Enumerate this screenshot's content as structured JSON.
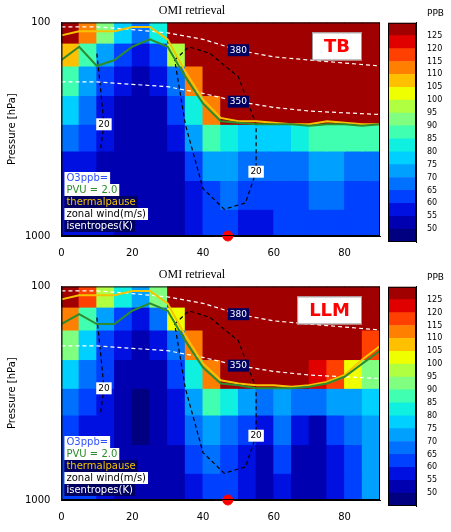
{
  "chart_data": [
    {
      "type": "heatmap",
      "title": "OMI retrieval",
      "panel_label": {
        "text": "TB",
        "color": "#ff0000"
      },
      "ylabel": "Pressure [hPa]",
      "xlim": [
        0,
        90
      ],
      "xticks": [
        0,
        20,
        40,
        60,
        80
      ],
      "ylim": [
        1000,
        100
      ],
      "yticks": [
        100,
        1000
      ],
      "log": "y",
      "grid": false,
      "cells": {
        "x_edges": [
          0,
          5,
          10,
          15,
          20,
          25,
          30,
          35,
          40,
          45,
          50,
          55,
          60,
          65,
          70,
          75,
          80,
          85,
          90
        ],
        "pressure_edges": [
          1000,
          750,
          550,
          400,
          300,
          220,
          160,
          125,
          100
        ],
        "values": [
          [
            55,
            55,
            55,
            52,
            52,
            50,
            50,
            55,
            60,
            60,
            58,
            58,
            60,
            60,
            62,
            62,
            62,
            62
          ],
          [
            55,
            55,
            52,
            52,
            50,
            50,
            50,
            58,
            62,
            65,
            60,
            60,
            62,
            62,
            65,
            65,
            62,
            62
          ],
          [
            58,
            55,
            52,
            50,
            50,
            50,
            52,
            62,
            70,
            72,
            65,
            65,
            68,
            68,
            70,
            72,
            68,
            68
          ],
          [
            65,
            60,
            55,
            50,
            50,
            50,
            55,
            70,
            85,
            80,
            75,
            75,
            78,
            80,
            85,
            88,
            85,
            85
          ],
          [
            75,
            65,
            58,
            52,
            50,
            52,
            60,
            80,
            110,
            128,
            128,
            128,
            128,
            128,
            128,
            128,
            128,
            128
          ],
          [
            85,
            70,
            60,
            55,
            52,
            55,
            65,
            110,
            128,
            128,
            128,
            128,
            128,
            128,
            128,
            128,
            128,
            128
          ],
          [
            105,
            85,
            70,
            60,
            55,
            60,
            95,
            128,
            128,
            128,
            128,
            128,
            128,
            128,
            128,
            128,
            128,
            128
          ],
          [
            128,
            110,
            90,
            75,
            65,
            80,
            128,
            128,
            128,
            128,
            128,
            128,
            128,
            128,
            128,
            128,
            128,
            128
          ]
        ]
      },
      "colorbar": {
        "label": "PPB",
        "range": [
          45,
          130
        ],
        "levels": [
          45,
          50,
          55,
          60,
          65,
          70,
          75,
          80,
          85,
          90,
          95,
          100,
          105,
          110,
          115,
          120,
          125,
          130
        ],
        "colors": [
          "#000080",
          "#0000b0",
          "#0010e0",
          "#0040ff",
          "#0070ff",
          "#00a0ff",
          "#00d0ff",
          "#10f0e0",
          "#40ffb0",
          "#80ff80",
          "#b0ff40",
          "#f0ff00",
          "#ffc000",
          "#ff8000",
          "#ff4000",
          "#e00000",
          "#a00000"
        ],
        "ticks": [
          50,
          55,
          60,
          65,
          70,
          75,
          80,
          85,
          90,
          95,
          100,
          105,
          110,
          115,
          120,
          125
        ]
      },
      "series": [
        {
          "color": "#2e8b2e",
          "line_style": "solid",
          "x": [
            0,
            5,
            10,
            15,
            20,
            25,
            30,
            35,
            40,
            45,
            50,
            55,
            60,
            65,
            70,
            75,
            80,
            85,
            90
          ],
          "values": [
            150,
            130,
            160,
            150,
            130,
            120,
            130,
            180,
            240,
            290,
            295,
            300,
            300,
            300,
            305,
            300,
            300,
            305,
            300
          ]
        },
        {
          "color": "#f5c400",
          "line_style": "solid",
          "x": [
            0,
            5,
            10,
            15,
            20,
            25,
            30,
            35,
            40,
            45,
            50,
            55,
            60,
            65,
            70,
            75,
            80,
            85,
            90
          ],
          "values": [
            115,
            110,
            110,
            110,
            105,
            105,
            120,
            170,
            230,
            280,
            290,
            290,
            295,
            300,
            300,
            290,
            295,
            300,
            300
          ]
        },
        {
          "label": "380",
          "color": "#ffffff",
          "line_style": "dashed",
          "x": [
            0,
            10,
            20,
            30,
            40,
            50,
            60,
            70,
            80,
            90
          ],
          "values": [
            105,
            105,
            108,
            112,
            120,
            135,
            145,
            150,
            155,
            160
          ]
        },
        {
          "label": "350",
          "color": "#ffffff",
          "line_style": "dashed",
          "x": [
            0,
            10,
            20,
            30,
            40,
            50,
            60,
            70,
            80,
            90
          ],
          "values": [
            190,
            190,
            195,
            200,
            215,
            235,
            250,
            260,
            265,
            270
          ]
        },
        {
          "label": "20",
          "color": "#000000",
          "line_style": "dashed",
          "x": [
            10,
            11,
            12,
            11
          ],
          "values": [
            140,
            200,
            300,
            400
          ]
        },
        {
          "label": "20",
          "color": "#000000",
          "line_style": "dashed",
          "x": [
            32,
            36,
            42,
            50,
            55,
            55,
            52,
            46,
            40,
            35,
            32
          ],
          "values": [
            150,
            130,
            140,
            180,
            300,
            500,
            700,
            750,
            600,
            300,
            150
          ]
        }
      ],
      "legend": "lower left",
      "annotations": [
        {
          "text": "O3ppb=",
          "color": "#3050ff"
        },
        {
          "text": "PVU = 2.0",
          "color": "#2e8b2e"
        },
        {
          "text": "thermalpause",
          "color": "#f5c400"
        },
        {
          "text": "zonal wind(m/s)",
          "color": "#000000"
        },
        {
          "text": "isentropes(K)",
          "color": "#ffffff"
        }
      ],
      "points": [
        {
          "x": 47,
          "y": 1000,
          "color": "#ff0000"
        }
      ]
    },
    {
      "type": "heatmap",
      "title": "OMI retrieval",
      "panel_label": {
        "text": "LLM",
        "color": "#ff0000"
      },
      "ylabel": "Pressure [hPa]",
      "xlim": [
        0,
        90
      ],
      "xticks": [
        0,
        20,
        40,
        60,
        80
      ],
      "ylim": [
        1000,
        100
      ],
      "yticks": [
        100,
        1000
      ],
      "log": "y",
      "grid": false,
      "cells": {
        "x_edges": [
          0,
          5,
          10,
          15,
          20,
          25,
          30,
          35,
          40,
          45,
          50,
          55,
          60,
          65,
          70,
          75,
          80,
          85,
          90
        ],
        "pressure_edges": [
          1000,
          750,
          550,
          400,
          300,
          220,
          160,
          125,
          100
        ],
        "values": [
          [
            62,
            60,
            55,
            52,
            50,
            50,
            52,
            58,
            62,
            60,
            55,
            52,
            58,
            52,
            50,
            55,
            60,
            72
          ],
          [
            60,
            58,
            55,
            52,
            50,
            50,
            52,
            60,
            65,
            62,
            55,
            52,
            60,
            52,
            50,
            58,
            62,
            70
          ],
          [
            62,
            58,
            55,
            50,
            48,
            50,
            55,
            65,
            72,
            68,
            60,
            55,
            65,
            55,
            52,
            62,
            65,
            70
          ],
          [
            68,
            62,
            58,
            52,
            48,
            50,
            58,
            72,
            85,
            80,
            70,
            65,
            72,
            68,
            65,
            70,
            72,
            75
          ],
          [
            78,
            68,
            60,
            52,
            50,
            52,
            60,
            80,
            110,
            125,
            128,
            128,
            128,
            125,
            120,
            115,
            100,
            90
          ],
          [
            90,
            75,
            62,
            55,
            52,
            58,
            66,
            110,
            128,
            128,
            128,
            128,
            128,
            128,
            128,
            128,
            128,
            115
          ],
          [
            110,
            88,
            72,
            62,
            58,
            65,
            100,
            128,
            128,
            128,
            128,
            128,
            128,
            128,
            128,
            128,
            128,
            128
          ],
          [
            128,
            115,
            95,
            80,
            70,
            90,
            128,
            128,
            128,
            128,
            128,
            128,
            128,
            128,
            128,
            128,
            128,
            128
          ]
        ]
      },
      "colorbar": {
        "label": "PPB",
        "range": [
          45,
          130
        ],
        "levels": [
          45,
          50,
          55,
          60,
          65,
          70,
          75,
          80,
          85,
          90,
          95,
          100,
          105,
          110,
          115,
          120,
          125,
          130
        ],
        "colors": [
          "#000080",
          "#0000b0",
          "#0010e0",
          "#0040ff",
          "#0070ff",
          "#00a0ff",
          "#00d0ff",
          "#10f0e0",
          "#40ffb0",
          "#80ff80",
          "#b0ff40",
          "#f0ff00",
          "#ffc000",
          "#ff8000",
          "#ff4000",
          "#e00000",
          "#a00000"
        ],
        "ticks": [
          50,
          55,
          60,
          65,
          70,
          75,
          80,
          85,
          90,
          95,
          100,
          105,
          110,
          115,
          120,
          125
        ]
      },
      "series": [
        {
          "color": "#2e8b2e",
          "line_style": "solid",
          "x": [
            0,
            5,
            10,
            15,
            20,
            25,
            30,
            35,
            40,
            45,
            50,
            55,
            60,
            65,
            70,
            75,
            80,
            85,
            90
          ],
          "values": [
            150,
            135,
            150,
            150,
            130,
            120,
            130,
            180,
            240,
            285,
            290,
            300,
            300,
            300,
            295,
            285,
            265,
            230,
            200
          ]
        },
        {
          "color": "#f5c400",
          "line_style": "solid",
          "x": [
            0,
            5,
            10,
            15,
            20,
            25,
            30,
            35,
            40,
            45,
            50,
            55,
            60,
            65,
            70,
            75,
            80,
            85,
            90
          ],
          "values": [
            115,
            110,
            110,
            110,
            105,
            105,
            120,
            170,
            230,
            275,
            285,
            290,
            290,
            295,
            290,
            280,
            260,
            220,
            190
          ]
        },
        {
          "label": "380",
          "color": "#ffffff",
          "line_style": "dashed",
          "x": [
            0,
            10,
            20,
            30,
            40,
            50,
            60,
            70,
            80,
            90
          ],
          "values": [
            105,
            105,
            108,
            112,
            120,
            135,
            145,
            150,
            155,
            160
          ]
        },
        {
          "label": "350",
          "color": "#ffffff",
          "line_style": "dashed",
          "x": [
            0,
            10,
            20,
            30,
            40,
            50,
            60,
            70,
            80,
            90
          ],
          "values": [
            190,
            190,
            195,
            200,
            215,
            235,
            250,
            260,
            265,
            270
          ]
        },
        {
          "label": "20",
          "color": "#000000",
          "line_style": "dashed",
          "x": [
            10,
            11,
            12,
            11
          ],
          "values": [
            140,
            200,
            300,
            400
          ]
        },
        {
          "label": "20",
          "color": "#000000",
          "line_style": "dashed",
          "x": [
            32,
            36,
            42,
            50,
            55,
            55,
            52,
            46,
            40,
            35,
            32
          ],
          "values": [
            150,
            130,
            140,
            180,
            300,
            500,
            700,
            750,
            600,
            300,
            150
          ]
        }
      ],
      "legend": "lower left",
      "annotations": [
        {
          "text": "O3ppb=",
          "color": "#3050ff"
        },
        {
          "text": "PVU = 2.0",
          "color": "#2e8b2e"
        },
        {
          "text": "thermalpause",
          "color": "#f5c400"
        },
        {
          "text": "zonal wind(m/s)",
          "color": "#000000"
        },
        {
          "text": "isentropes(K)",
          "color": "#ffffff"
        }
      ],
      "points": [
        {
          "x": 47,
          "y": 1000,
          "color": "#ff0000"
        }
      ]
    }
  ]
}
